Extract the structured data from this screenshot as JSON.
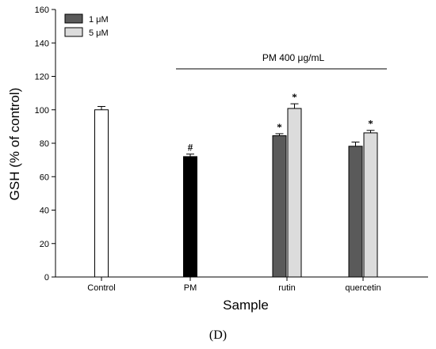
{
  "chart_data": {
    "type": "bar",
    "ylabel": "GSH (% of control)",
    "xlabel": "Sample",
    "caption": "(D)",
    "ylim": [
      0,
      160
    ],
    "yticks": [
      0,
      20,
      40,
      60,
      80,
      100,
      120,
      140,
      160
    ],
    "categories": [
      "Control",
      "PM",
      "rutin",
      "quercetin"
    ],
    "legend": {
      "placement": "top-left",
      "entries": [
        {
          "label": "1 μM",
          "color": "#5a5a5a"
        },
        {
          "label": "5 μM",
          "color": "#dcdcdc"
        }
      ]
    },
    "annotation": {
      "text": "PM 400 μg/mL",
      "spans": [
        "PM",
        "quercetin"
      ]
    },
    "bars": [
      {
        "category": "Control",
        "series": null,
        "value": 100,
        "error": 2,
        "color": "#ffffff",
        "mark": ""
      },
      {
        "category": "PM",
        "series": null,
        "value": 72,
        "error": 1.5,
        "color": "#000000",
        "mark": "#"
      },
      {
        "category": "rutin",
        "series": "1 μM",
        "value": 84.5,
        "error": 1.2,
        "color": "#5a5a5a",
        "mark": "*"
      },
      {
        "category": "rutin",
        "series": "5 μM",
        "value": 100.8,
        "error": 2.8,
        "color": "#dcdcdc",
        "mark": "*"
      },
      {
        "category": "quercetin",
        "series": "1 μM",
        "value": 78.2,
        "error": 2.5,
        "color": "#5a5a5a",
        "mark": ""
      },
      {
        "category": "quercetin",
        "series": "5 μM",
        "value": 86.2,
        "error": 1.5,
        "color": "#dcdcdc",
        "mark": "*"
      }
    ]
  }
}
